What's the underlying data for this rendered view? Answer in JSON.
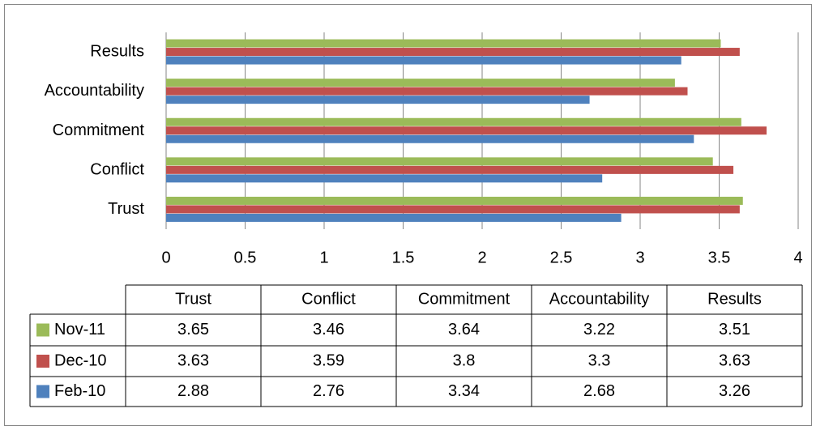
{
  "chart_data": {
    "type": "bar",
    "orientation": "horizontal",
    "categories": [
      "Trust",
      "Conflict",
      "Commitment",
      "Accountability",
      "Results"
    ],
    "series": [
      {
        "name": "Nov-11",
        "color": "#9bbb59",
        "values": [
          3.65,
          3.46,
          3.64,
          3.22,
          3.51
        ]
      },
      {
        "name": "Dec-10",
        "color": "#c0504d",
        "values": [
          3.63,
          3.59,
          3.8,
          3.3,
          3.63
        ]
      },
      {
        "name": "Feb-10",
        "color": "#4f81bd",
        "values": [
          2.88,
          2.76,
          3.34,
          2.68,
          3.26
        ]
      }
    ],
    "xlim": [
      0,
      4
    ],
    "xticks": [
      0,
      0.5,
      1,
      1.5,
      2,
      2.5,
      3,
      3.5,
      4
    ],
    "grid": true,
    "data_table": true
  }
}
